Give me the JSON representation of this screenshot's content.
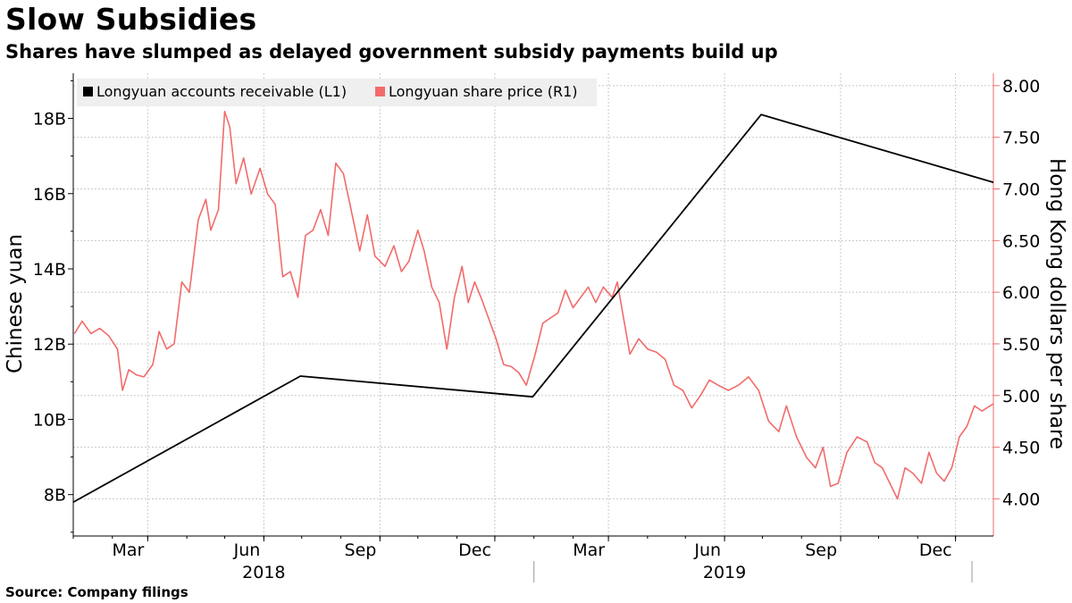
{
  "title": "Slow Subsidies",
  "subtitle": "Shares have slumped as delayed government subsidy payments build up",
  "source": "Source: Company filings",
  "colors": {
    "receivables": "#000000",
    "share_price": "#f26b6b",
    "right_axis": "#f26b6b",
    "grid": "#c8c8c8"
  },
  "chart_data": {
    "type": "line",
    "x_range": [
      "2018-01-01",
      "2019-12-31"
    ],
    "x_ticks": [
      {
        "label": "Mar",
        "date": "2018-03-01"
      },
      {
        "label": "Jun",
        "date": "2018-06-01"
      },
      {
        "label": "Sep",
        "date": "2018-09-01"
      },
      {
        "label": "Dec",
        "date": "2018-12-01"
      },
      {
        "label": "Mar",
        "date": "2019-03-01"
      },
      {
        "label": "Jun",
        "date": "2019-06-01"
      },
      {
        "label": "Sep",
        "date": "2019-09-01"
      },
      {
        "label": "Dec",
        "date": "2019-12-01"
      }
    ],
    "years": [
      {
        "label": "2018",
        "date": "2018-06-01"
      },
      {
        "label": "2019",
        "date": "2019-06-01"
      }
    ],
    "left_axis": {
      "label": "Chinese yuan",
      "ylim": [
        6.9,
        19.2
      ],
      "ticks": [
        {
          "value": 8,
          "label": "8B"
        },
        {
          "value": 10,
          "label": "10B"
        },
        {
          "value": 12,
          "label": "12B"
        },
        {
          "value": 14,
          "label": "14B"
        },
        {
          "value": 16,
          "label": "16B"
        },
        {
          "value": 18,
          "label": "18B"
        }
      ]
    },
    "right_axis": {
      "label": "Hong Kong dollars per share",
      "ylim": [
        3.64,
        8.12
      ],
      "ticks": [
        {
          "value": 4.0,
          "label": "4.00"
        },
        {
          "value": 4.5,
          "label": "4.50"
        },
        {
          "value": 5.0,
          "label": "5.00"
        },
        {
          "value": 5.5,
          "label": "5.50"
        },
        {
          "value": 6.0,
          "label": "6.00"
        },
        {
          "value": 6.5,
          "label": "6.50"
        },
        {
          "value": 7.0,
          "label": "7.00"
        },
        {
          "value": 7.5,
          "label": "7.50"
        },
        {
          "value": 8.0,
          "label": "8.00"
        }
      ]
    },
    "legend": {
      "placement": "top-left",
      "entries": [
        {
          "label": "Longyuan accounts receivable (L1)",
          "series": "receivables"
        },
        {
          "label": "Longyuan share price (R1)",
          "series": "share_price"
        }
      ]
    },
    "series": [
      {
        "name": "Longyuan accounts receivable (L1)",
        "key": "receivables",
        "axis": "left",
        "units": "billion yuan",
        "points": [
          {
            "date": "2018-01-01",
            "value": 7.8
          },
          {
            "date": "2018-06-30",
            "value": 11.15
          },
          {
            "date": "2018-12-31",
            "value": 10.6
          },
          {
            "date": "2019-06-30",
            "value": 18.1
          },
          {
            "date": "2019-12-31",
            "value": 16.3
          }
        ]
      },
      {
        "name": "Longyuan share price (R1)",
        "key": "share_price",
        "axis": "right",
        "units": "HKD per share",
        "points": [
          {
            "date": "2018-01-02",
            "value": 5.6
          },
          {
            "date": "2018-01-08",
            "value": 5.72
          },
          {
            "date": "2018-01-15",
            "value": 5.6
          },
          {
            "date": "2018-01-22",
            "value": 5.65
          },
          {
            "date": "2018-01-29",
            "value": 5.58
          },
          {
            "date": "2018-02-05",
            "value": 5.45
          },
          {
            "date": "2018-02-09",
            "value": 5.05
          },
          {
            "date": "2018-02-14",
            "value": 5.25
          },
          {
            "date": "2018-02-20",
            "value": 5.2
          },
          {
            "date": "2018-02-26",
            "value": 5.18
          },
          {
            "date": "2018-03-05",
            "value": 5.3
          },
          {
            "date": "2018-03-10",
            "value": 5.62
          },
          {
            "date": "2018-03-16",
            "value": 5.45
          },
          {
            "date": "2018-03-22",
            "value": 5.5
          },
          {
            "date": "2018-03-28",
            "value": 6.1
          },
          {
            "date": "2018-04-03",
            "value": 6.0
          },
          {
            "date": "2018-04-10",
            "value": 6.7
          },
          {
            "date": "2018-04-16",
            "value": 6.9
          },
          {
            "date": "2018-04-20",
            "value": 6.6
          },
          {
            "date": "2018-04-26",
            "value": 6.8
          },
          {
            "date": "2018-05-01",
            "value": 7.75
          },
          {
            "date": "2018-05-05",
            "value": 7.6
          },
          {
            "date": "2018-05-10",
            "value": 7.05
          },
          {
            "date": "2018-05-16",
            "value": 7.3
          },
          {
            "date": "2018-05-22",
            "value": 6.95
          },
          {
            "date": "2018-05-29",
            "value": 7.2
          },
          {
            "date": "2018-06-04",
            "value": 6.95
          },
          {
            "date": "2018-06-10",
            "value": 6.85
          },
          {
            "date": "2018-06-16",
            "value": 6.15
          },
          {
            "date": "2018-06-22",
            "value": 6.2
          },
          {
            "date": "2018-06-28",
            "value": 5.95
          },
          {
            "date": "2018-07-04",
            "value": 6.55
          },
          {
            "date": "2018-07-10",
            "value": 6.6
          },
          {
            "date": "2018-07-16",
            "value": 6.8
          },
          {
            "date": "2018-07-22",
            "value": 6.55
          },
          {
            "date": "2018-07-28",
            "value": 7.25
          },
          {
            "date": "2018-08-03",
            "value": 7.15
          },
          {
            "date": "2018-08-10",
            "value": 6.75
          },
          {
            "date": "2018-08-16",
            "value": 6.4
          },
          {
            "date": "2018-08-22",
            "value": 6.75
          },
          {
            "date": "2018-08-28",
            "value": 6.35
          },
          {
            "date": "2018-09-05",
            "value": 6.25
          },
          {
            "date": "2018-09-12",
            "value": 6.45
          },
          {
            "date": "2018-09-18",
            "value": 6.2
          },
          {
            "date": "2018-09-24",
            "value": 6.3
          },
          {
            "date": "2018-10-01",
            "value": 6.6
          },
          {
            "date": "2018-10-06",
            "value": 6.4
          },
          {
            "date": "2018-10-12",
            "value": 6.05
          },
          {
            "date": "2018-10-18",
            "value": 5.9
          },
          {
            "date": "2018-10-24",
            "value": 5.45
          },
          {
            "date": "2018-10-30",
            "value": 5.95
          },
          {
            "date": "2018-11-05",
            "value": 6.25
          },
          {
            "date": "2018-11-10",
            "value": 5.9
          },
          {
            "date": "2018-11-15",
            "value": 6.1
          },
          {
            "date": "2018-11-20",
            "value": 5.95
          },
          {
            "date": "2018-11-26",
            "value": 5.75
          },
          {
            "date": "2018-12-02",
            "value": 5.55
          },
          {
            "date": "2018-12-08",
            "value": 5.3
          },
          {
            "date": "2018-12-14",
            "value": 5.28
          },
          {
            "date": "2018-12-20",
            "value": 5.22
          },
          {
            "date": "2018-12-26",
            "value": 5.1
          },
          {
            "date": "2019-01-02",
            "value": 5.4
          },
          {
            "date": "2019-01-08",
            "value": 5.7
          },
          {
            "date": "2019-01-14",
            "value": 5.75
          },
          {
            "date": "2019-01-20",
            "value": 5.8
          },
          {
            "date": "2019-01-26",
            "value": 6.02
          },
          {
            "date": "2019-02-01",
            "value": 5.85
          },
          {
            "date": "2019-02-07",
            "value": 5.95
          },
          {
            "date": "2019-02-13",
            "value": 6.05
          },
          {
            "date": "2019-02-19",
            "value": 5.9
          },
          {
            "date": "2019-02-25",
            "value": 6.05
          },
          {
            "date": "2019-03-04",
            "value": 5.95
          },
          {
            "date": "2019-03-08",
            "value": 6.1
          },
          {
            "date": "2019-03-13",
            "value": 5.75
          },
          {
            "date": "2019-03-18",
            "value": 5.4
          },
          {
            "date": "2019-03-25",
            "value": 5.55
          },
          {
            "date": "2019-04-01",
            "value": 5.45
          },
          {
            "date": "2019-04-08",
            "value": 5.42
          },
          {
            "date": "2019-04-15",
            "value": 5.35
          },
          {
            "date": "2019-04-22",
            "value": 5.1
          },
          {
            "date": "2019-04-29",
            "value": 5.05
          },
          {
            "date": "2019-05-06",
            "value": 4.88
          },
          {
            "date": "2019-05-13",
            "value": 5.0
          },
          {
            "date": "2019-05-20",
            "value": 5.15
          },
          {
            "date": "2019-05-27",
            "value": 5.1
          },
          {
            "date": "2019-06-04",
            "value": 5.05
          },
          {
            "date": "2019-06-12",
            "value": 5.1
          },
          {
            "date": "2019-06-20",
            "value": 5.18
          },
          {
            "date": "2019-06-28",
            "value": 5.05
          },
          {
            "date": "2019-07-06",
            "value": 4.75
          },
          {
            "date": "2019-07-14",
            "value": 4.65
          },
          {
            "date": "2019-07-20",
            "value": 4.9
          },
          {
            "date": "2019-07-28",
            "value": 4.6
          },
          {
            "date": "2019-08-05",
            "value": 4.4
          },
          {
            "date": "2019-08-12",
            "value": 4.3
          },
          {
            "date": "2019-08-18",
            "value": 4.5
          },
          {
            "date": "2019-08-24",
            "value": 4.12
          },
          {
            "date": "2019-08-30",
            "value": 4.15
          },
          {
            "date": "2019-09-06",
            "value": 4.45
          },
          {
            "date": "2019-09-14",
            "value": 4.6
          },
          {
            "date": "2019-09-22",
            "value": 4.55
          },
          {
            "date": "2019-09-28",
            "value": 4.35
          },
          {
            "date": "2019-10-04",
            "value": 4.3
          },
          {
            "date": "2019-10-10",
            "value": 4.15
          },
          {
            "date": "2019-10-16",
            "value": 4.0
          },
          {
            "date": "2019-10-22",
            "value": 4.3
          },
          {
            "date": "2019-10-28",
            "value": 4.25
          },
          {
            "date": "2019-11-04",
            "value": 4.15
          },
          {
            "date": "2019-11-10",
            "value": 4.45
          },
          {
            "date": "2019-11-16",
            "value": 4.25
          },
          {
            "date": "2019-11-22",
            "value": 4.17
          },
          {
            "date": "2019-11-28",
            "value": 4.3
          },
          {
            "date": "2019-12-04",
            "value": 4.6
          },
          {
            "date": "2019-12-10",
            "value": 4.7
          },
          {
            "date": "2019-12-16",
            "value": 4.9
          },
          {
            "date": "2019-12-22",
            "value": 4.85
          },
          {
            "date": "2019-12-31",
            "value": 4.92
          }
        ]
      }
    ]
  }
}
